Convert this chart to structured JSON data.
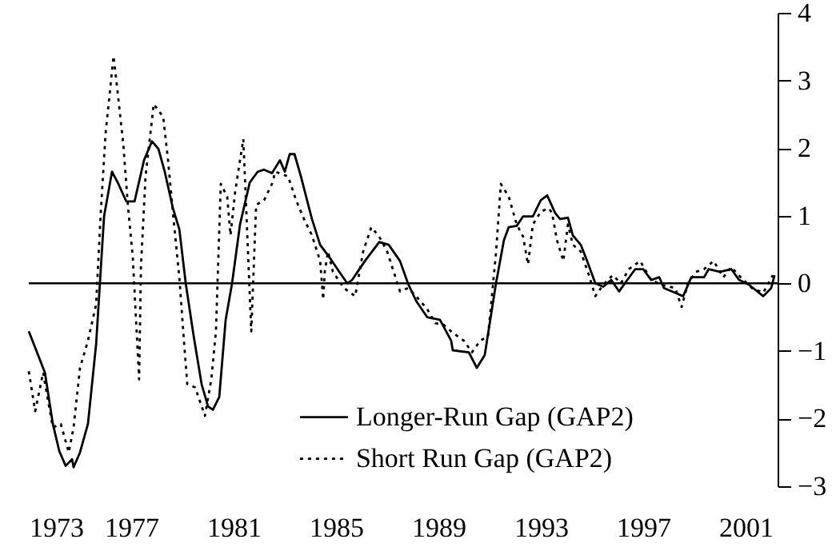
{
  "chart_data": {
    "type": "line",
    "xlim": [
      1973,
      2002.25
    ],
    "xticks": [
      1973,
      1977,
      1981,
      1985,
      1989,
      1993,
      1997,
      2001
    ],
    "ylim": [
      -3,
      4
    ],
    "yticks": [
      -3,
      -2,
      -1,
      0,
      1,
      2,
      3,
      4
    ],
    "grid": false,
    "legend": "bottom",
    "ref_lines": [
      {
        "axis": "y",
        "value": 0,
        "color": "#000000",
        "line_style": "solid"
      }
    ],
    "series": [
      {
        "name": "Longer-Run Gap (GAP2)",
        "color": "#000000",
        "line_style": "solid",
        "x": [
          1973.0,
          1973.63,
          1973.94,
          1974.19,
          1974.44,
          1974.69,
          1974.75,
          1975.0,
          1975.31,
          1975.63,
          1975.94,
          1976.25,
          1976.5,
          1976.81,
          1977.13,
          1977.5,
          1977.81,
          1978.06,
          1978.31,
          1978.63,
          1978.88,
          1979.13,
          1979.44,
          1979.75,
          1980.0,
          1980.19,
          1980.44,
          1980.69,
          1980.94,
          1981.25,
          1981.63,
          1981.94,
          1982.19,
          1982.5,
          1982.81,
          1983.0,
          1983.19,
          1983.38,
          1983.63,
          1984.06,
          1984.38,
          1984.81,
          1985.13,
          1985.44,
          1985.63,
          1986.13,
          1986.69,
          1987.06,
          1987.5,
          1987.81,
          1988.13,
          1988.56,
          1989.06,
          1989.5,
          1989.56,
          1990.19,
          1990.5,
          1990.81,
          1991.25,
          1991.56,
          1991.75,
          1992.06,
          1992.31,
          1992.69,
          1993.0,
          1993.25,
          1993.56,
          1993.75,
          1994.06,
          1994.25,
          1994.56,
          1994.81,
          1995.13,
          1995.44,
          1995.75,
          1996.06,
          1996.38,
          1996.69,
          1997.0,
          1997.31,
          1997.63,
          1997.81,
          1998.13,
          1998.56,
          1998.88,
          1999.38,
          1999.56,
          2000.0,
          2000.44,
          2000.75,
          2001.13,
          2001.69,
          2002.0,
          2002.13
        ],
        "values": [
          -0.71,
          -1.32,
          -2.08,
          -2.48,
          -2.7,
          -2.6,
          -2.72,
          -2.5,
          -2.08,
          -0.9,
          0.99,
          1.65,
          1.47,
          1.21,
          1.21,
          1.82,
          2.1,
          1.99,
          1.65,
          1.11,
          0.8,
          0,
          -0.78,
          -1.49,
          -1.82,
          -1.87,
          -1.68,
          -0.54,
          0,
          0.87,
          1.49,
          1.65,
          1.68,
          1.63,
          1.82,
          1.65,
          1.91,
          1.91,
          1.58,
          0.95,
          0.57,
          0.35,
          0.17,
          0,
          0.05,
          0.33,
          0.61,
          0.57,
          0.33,
          0,
          -0.26,
          -0.5,
          -0.54,
          -0.85,
          -0.99,
          -1.02,
          -1.25,
          -1.06,
          0,
          0.64,
          0.83,
          0.85,
          0.99,
          0.99,
          1.23,
          1.3,
          1.04,
          0.95,
          0.97,
          0.71,
          0.57,
          0.33,
          0,
          -0.05,
          0.05,
          -0.12,
          0.05,
          0.21,
          0.21,
          0.05,
          0.09,
          -0.07,
          -0.12,
          -0.19,
          0.09,
          0.09,
          0.21,
          0.17,
          0.21,
          0.05,
          -0.02,
          -0.19,
          -0.07,
          0.12
        ]
      },
      {
        "name": "Short Run Gap (GAP2)",
        "color": "#000000",
        "line_style": "dotted",
        "x": [
          1973.0,
          1973.25,
          1973.56,
          1973.75,
          1973.94,
          1974.25,
          1974.56,
          1974.75,
          1975.0,
          1975.31,
          1975.63,
          1975.81,
          1976.0,
          1976.31,
          1976.44,
          1976.69,
          1976.88,
          1977.06,
          1977.31,
          1977.38,
          1977.56,
          1977.88,
          1978.25,
          1978.44,
          1978.63,
          1978.88,
          1979.06,
          1979.19,
          1979.5,
          1979.88,
          1980.13,
          1980.31,
          1980.5,
          1980.75,
          1980.88,
          1981.06,
          1981.25,
          1981.38,
          1981.69,
          1981.88,
          1982.19,
          1982.5,
          1982.63,
          1983.13,
          1983.44,
          1983.75,
          1984.06,
          1984.38,
          1984.5,
          1984.56,
          1984.69,
          1984.88,
          1985.31,
          1985.75,
          1986.06,
          1986.38,
          1986.69,
          1987.0,
          1987.5,
          1987.81,
          1988.13,
          1988.56,
          1988.88,
          1989.19,
          1989.56,
          1990.0,
          1990.31,
          1990.63,
          1990.94,
          1991.25,
          1991.44,
          1991.75,
          1992.06,
          1992.31,
          1992.5,
          1992.69,
          1993.0,
          1993.31,
          1993.44,
          1993.63,
          1993.88,
          1994.06,
          1994.25,
          1994.56,
          1994.88,
          1995.13,
          1995.44,
          1995.81,
          1996.13,
          1996.44,
          1996.88,
          1997.31,
          1997.69,
          1998.25,
          1998.5,
          1998.75,
          1999.06,
          1999.38,
          1999.75,
          2000.13,
          2000.44,
          2000.81,
          2001.25,
          2001.69,
          2002.06
        ],
        "values": [
          -1.3,
          -1.89,
          -1.32,
          -1.73,
          -2.13,
          -2.08,
          -2.5,
          -2.13,
          -1.25,
          -0.85,
          -0.31,
          1.04,
          2.22,
          3.36,
          2.93,
          2.06,
          1.11,
          0.4,
          -1.42,
          0.24,
          1.58,
          2.65,
          2.46,
          1.82,
          1.04,
          0.09,
          -0.85,
          -1.49,
          -1.54,
          -1.96,
          -1.42,
          -0.71,
          1.47,
          1.28,
          0.71,
          1.35,
          1.82,
          2.13,
          -0.71,
          1.16,
          1.23,
          1.47,
          1.65,
          1.58,
          1.23,
          0.95,
          0.71,
          0.33,
          -0.24,
          0.17,
          0.47,
          0.17,
          -0.07,
          -0.19,
          0.47,
          0.83,
          0.69,
          0.47,
          -0.12,
          -0.07,
          -0.19,
          -0.38,
          -0.59,
          -0.61,
          -0.73,
          -0.85,
          -1.02,
          -0.85,
          -0.78,
          0.45,
          1.47,
          1.28,
          0.87,
          0.69,
          0.28,
          0.87,
          1.06,
          1.11,
          1.04,
          0.64,
          0.33,
          0.87,
          0.57,
          0.47,
          0.12,
          -0.19,
          -0.02,
          0.12,
          0,
          0.21,
          0.33,
          0.05,
          -0.02,
          -0.07,
          -0.35,
          0,
          0.17,
          0.21,
          0.33,
          0.09,
          0.24,
          0.09,
          -0.07,
          -0.14,
          0.12
        ]
      }
    ]
  }
}
